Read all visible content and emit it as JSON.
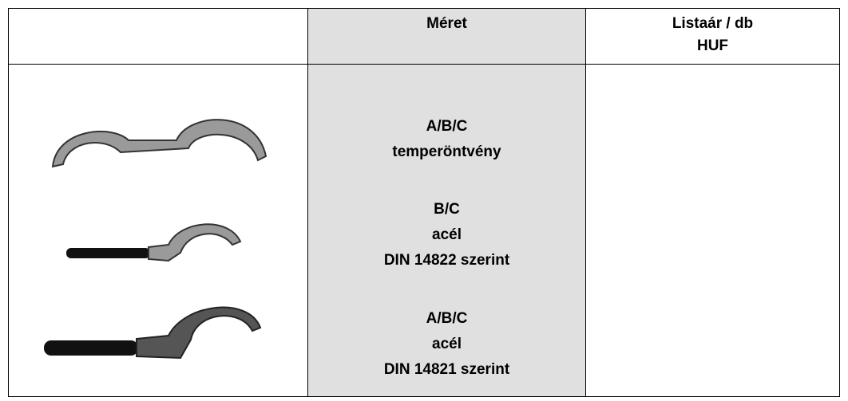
{
  "table": {
    "header": {
      "size": "Méret",
      "price": [
        "Listaár / db",
        "HUF"
      ]
    },
    "groups": [
      [
        "A/B/C",
        "temperöntvény"
      ],
      [
        "B/C",
        "acél",
        "DIN 14822 szerint"
      ],
      [
        "A/B/C",
        "acél",
        "DIN 14821 szerint"
      ]
    ]
  }
}
